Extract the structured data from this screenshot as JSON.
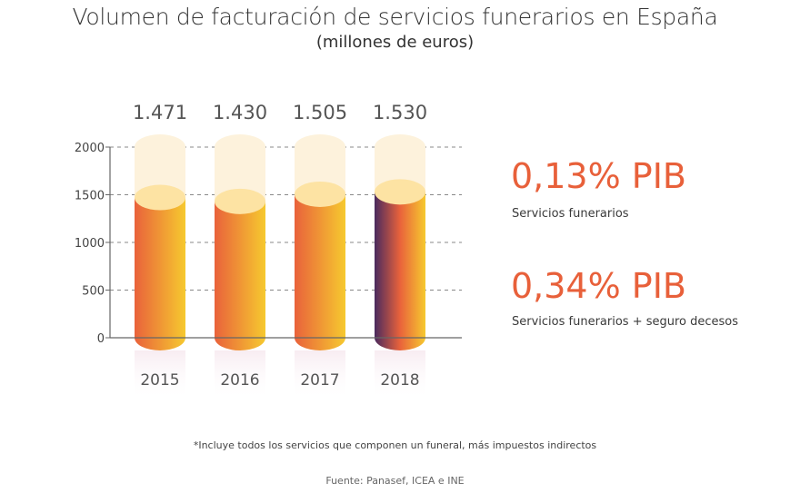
{
  "header": {
    "title": "Volumen de facturación de servicios funerarios en España",
    "subtitle": "(millones de euros)"
  },
  "chart_data": {
    "type": "bar",
    "style": "3d-cylinder",
    "title": "Volumen de facturación de servicios funerarios en España",
    "subtitle": "(millones de euros)",
    "xlabel": "",
    "ylabel": "",
    "categories": [
      "2015",
      "2016",
      "2017",
      "2018"
    ],
    "values": [
      1471,
      1430,
      1505,
      1530
    ],
    "value_labels": [
      "1.471",
      "1.430",
      "1.505",
      "1.530"
    ],
    "ylim": [
      0,
      2000
    ],
    "yticks": [
      0,
      500,
      1000,
      1500,
      2000
    ],
    "ytick_labels": [
      "0",
      "500",
      "1000",
      "1500",
      "2000"
    ],
    "grid": "dashed-horizontal",
    "highlighted_category": "2018",
    "colors": {
      "bar_left": "#e9623b",
      "bar_right": "#f6c92f",
      "highlight_left": "#4a2a5e",
      "highlight_mid": "#e9623b",
      "highlight_right": "#f6c92f",
      "bar_top": "#fde3a3",
      "ghost": "#fdf2dc",
      "grid": "#888888",
      "axis": "#666666",
      "text": "#555555"
    }
  },
  "stats": [
    {
      "value": "0,13% PIB",
      "label": "Servicios funerarios"
    },
    {
      "value": "0,34% PIB",
      "label": "Servicios funerarios + seguro decesos"
    }
  ],
  "footnote": "*Incluye todos los servicios que componen un funeral, más impuestos indirectos",
  "source": "Fuente: Panasef, ICEA e INE",
  "accent_color": "#e8603a"
}
